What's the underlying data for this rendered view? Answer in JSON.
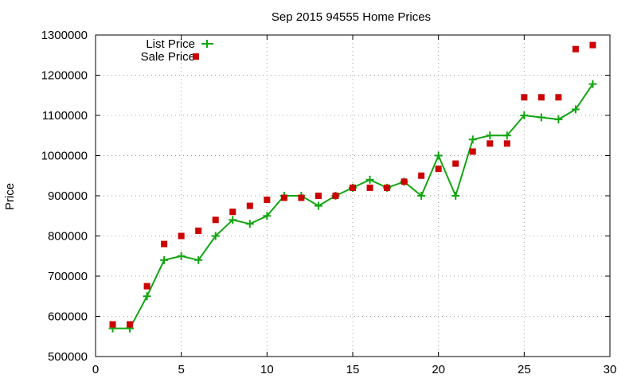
{
  "chart_data": {
    "type": "line",
    "title": "Sep 2015 94555 Home Prices",
    "xlabel": "",
    "ylabel": "Price",
    "xlim": [
      0,
      30
    ],
    "ylim": [
      500000,
      1300000
    ],
    "xticks": [
      0,
      5,
      10,
      15,
      20,
      25,
      30
    ],
    "yticks": [
      500000,
      600000,
      700000,
      800000,
      900000,
      1000000,
      1100000,
      1200000,
      1300000
    ],
    "grid": true,
    "legend_position": "top-left",
    "series": [
      {
        "name": "List Price",
        "style": "line-with-plus-markers",
        "color": "#11a611",
        "x": [
          1,
          2,
          3,
          4,
          5,
          6,
          7,
          8,
          9,
          10,
          11,
          12,
          13,
          14,
          15,
          16,
          17,
          18,
          19,
          20,
          21,
          22,
          23,
          24,
          25,
          26,
          27,
          28,
          29
        ],
        "values": [
          570000,
          570000,
          650000,
          740000,
          750000,
          740000,
          800000,
          840000,
          830000,
          850000,
          900000,
          900000,
          875000,
          900000,
          920000,
          940000,
          920000,
          935000,
          900000,
          1000000,
          900000,
          1040000,
          1050000,
          1050000,
          1100000,
          1095000,
          1090000,
          1115000,
          1178000
        ]
      },
      {
        "name": "Sale Price",
        "style": "square-markers",
        "color": "#cc0000",
        "x": [
          1,
          2,
          3,
          4,
          5,
          6,
          7,
          8,
          9,
          10,
          11,
          12,
          13,
          14,
          15,
          16,
          17,
          18,
          19,
          20,
          21,
          22,
          23,
          24,
          25,
          26,
          27,
          28,
          29
        ],
        "values": [
          580000,
          580000,
          675000,
          780000,
          800000,
          813000,
          840000,
          860000,
          875000,
          890000,
          895000,
          895000,
          900000,
          900000,
          920000,
          920000,
          920000,
          935000,
          950000,
          967000,
          980000,
          1010000,
          1030000,
          1030000,
          1145000,
          1145000,
          1145000,
          1265000,
          1275000
        ]
      }
    ]
  }
}
